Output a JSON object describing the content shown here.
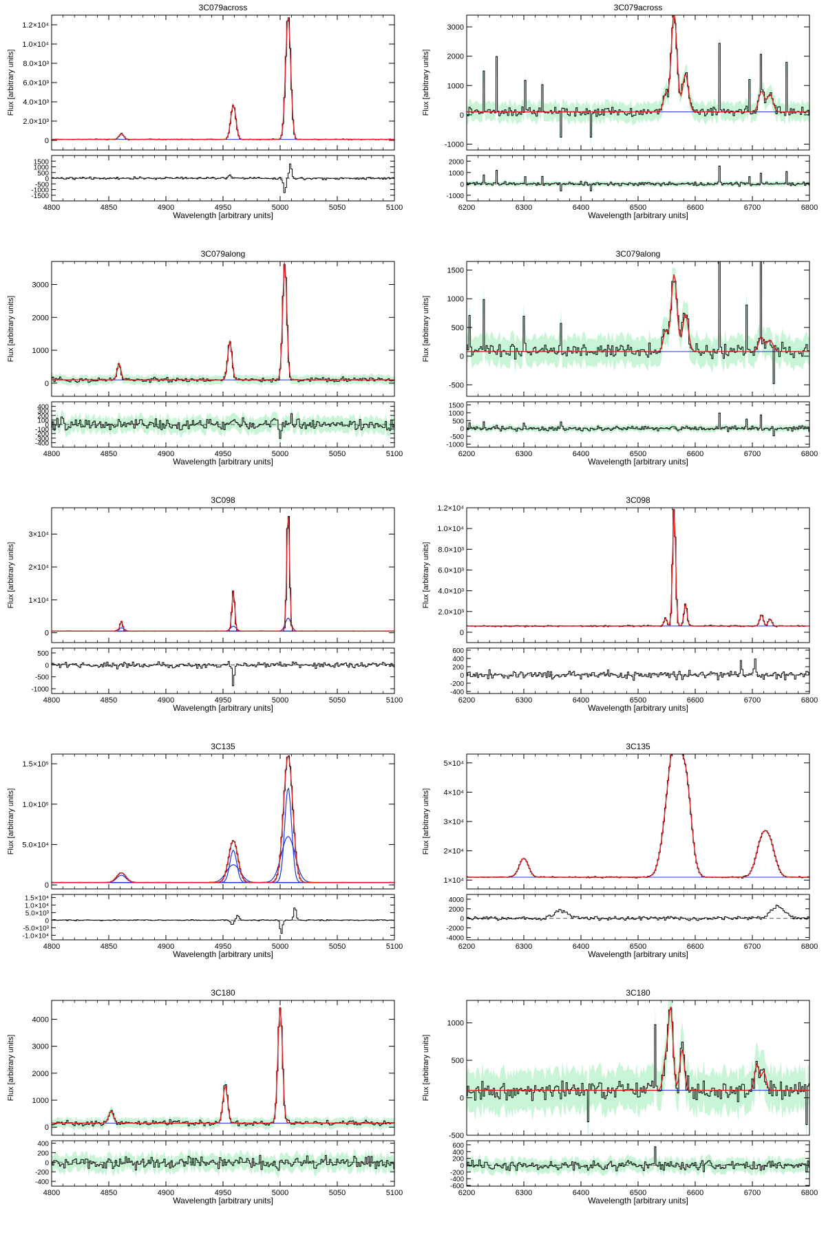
{
  "figure": {
    "xlabel": "Wavelength [arbitrary units]",
    "ylabel": "Flux [arbitrary units]"
  },
  "colors": {
    "data": "#000000",
    "error_band": "#b6f2c8",
    "fit": "#e02020",
    "components": "#2030e0",
    "frame": "#000000"
  },
  "chart_data": [
    {
      "type": "line",
      "row": 0,
      "col": 0,
      "title": "3C079across",
      "xlim": [
        4800,
        5100
      ],
      "ylim": [
        -1000,
        13000
      ],
      "res_ylim": [
        -2000,
        2000
      ],
      "xticks": [
        4800,
        4850,
        4900,
        4950,
        5000,
        5050,
        5100
      ],
      "yticks": [
        0,
        2000,
        4000,
        6000,
        8000,
        10000,
        12000
      ],
      "ytick_labels": [
        "0",
        "2.0×10³",
        "4.0×10³",
        "6.0×10³",
        "8.0×10³",
        "1.0×10⁴",
        "1.2×10⁴"
      ],
      "res_yticks": [
        -1500,
        -1000,
        -500,
        0,
        500,
        1000,
        1500
      ],
      "res_ytick_labels": [
        "-1500",
        "-1000",
        "-500",
        "0",
        "500",
        "1000",
        "1500"
      ],
      "continuum": 100,
      "noise": 40,
      "res_noise": 90,
      "error_band": false,
      "lines": [
        {
          "x": 4861,
          "amp": 600,
          "sigma": 2
        },
        {
          "x": 4959,
          "amp": 3600,
          "sigma": 2.2
        },
        {
          "x": 5007,
          "amp": 13000,
          "sigma": 2.2
        }
      ],
      "components": [],
      "residual_features": [
        {
          "x": 5009,
          "amp": 1300,
          "sigma": 1
        },
        {
          "x": 5004,
          "amp": -1300,
          "sigma": 1
        },
        {
          "x": 4956,
          "amp": 300,
          "sigma": 1.2
        }
      ]
    },
    {
      "type": "line",
      "row": 0,
      "col": 1,
      "title": "3C079across",
      "xlim": [
        6200,
        6800
      ],
      "ylim": [
        -1200,
        3400
      ],
      "res_ylim": [
        -1500,
        2500
      ],
      "xticks": [
        6200,
        6300,
        6400,
        6500,
        6600,
        6700,
        6800
      ],
      "yticks": [
        -1000,
        0,
        1000,
        2000,
        3000
      ],
      "ytick_labels": [
        "-1000",
        "0",
        "1000",
        "2000",
        "3000"
      ],
      "res_yticks": [
        -1000,
        0,
        1000,
        2000
      ],
      "res_ytick_labels": [
        "-1000",
        "0",
        "1000",
        "2000"
      ],
      "continuum": 100,
      "noise": 140,
      "res_noise": 140,
      "error_band": true,
      "lines": [
        {
          "x": 6548,
          "amp": 600,
          "sigma": 2
        },
        {
          "x": 6563,
          "amp": 3400,
          "sigma": 2.5
        },
        {
          "x": 6583,
          "amp": 1300,
          "sigma": 2.5
        },
        {
          "x": 6716,
          "amp": 700,
          "sigma": 2.5
        },
        {
          "x": 6731,
          "amp": 600,
          "sigma": 2.5
        }
      ],
      "components": [],
      "spikes": [
        {
          "x": 6230,
          "amp": 1400
        },
        {
          "x": 6252,
          "amp": 1800
        },
        {
          "x": 6303,
          "amp": 1000
        },
        {
          "x": 6333,
          "amp": 900
        },
        {
          "x": 6364,
          "amp": -1000
        },
        {
          "x": 6642,
          "amp": 2500
        },
        {
          "x": 6694,
          "amp": 1100
        },
        {
          "x": 6715,
          "amp": 1300
        },
        {
          "x": 6760,
          "amp": 1700
        },
        {
          "x": 6418,
          "amp": -900
        }
      ],
      "residual_features": []
    },
    {
      "type": "line",
      "row": 1,
      "col": 0,
      "title": "3C079along",
      "xlim": [
        4800,
        5100
      ],
      "ylim": [
        -400,
        3700
      ],
      "res_ylim": [
        -500,
        500
      ],
      "xticks": [
        4800,
        4850,
        4900,
        4950,
        5000,
        5050,
        5100
      ],
      "yticks": [
        0,
        1000,
        2000,
        3000
      ],
      "ytick_labels": [
        "0",
        "1000",
        "2000",
        "3000"
      ],
      "res_yticks": [
        -400,
        -300,
        -200,
        -100,
        0,
        100,
        200,
        300,
        400
      ],
      "res_ytick_labels": [
        "-400",
        "-300",
        "-200",
        "-100",
        "0",
        "100",
        "200",
        "300",
        "400"
      ],
      "continuum": 100,
      "noise": 60,
      "res_noise": 110,
      "error_band": true,
      "lines": [
        {
          "x": 4859,
          "amp": 500,
          "sigma": 1.6
        },
        {
          "x": 4956,
          "amp": 1200,
          "sigma": 1.8
        },
        {
          "x": 5004,
          "amp": 3600,
          "sigma": 1.8
        }
      ],
      "components": [],
      "residual_features": [
        {
          "x": 5000,
          "amp": -350,
          "sigma": 0.6
        },
        {
          "x": 5010,
          "amp": 300,
          "sigma": 0.6
        }
      ]
    },
    {
      "type": "line",
      "row": 1,
      "col": 1,
      "title": "3C079along",
      "xlim": [
        6200,
        6800
      ],
      "ylim": [
        -700,
        1650
      ],
      "res_ylim": [
        -1200,
        1700
      ],
      "xticks": [
        6200,
        6300,
        6400,
        6500,
        6600,
        6700,
        6800
      ],
      "yticks": [
        -500,
        0,
        500,
        1000,
        1500
      ],
      "ytick_labels": [
        "-500",
        "0",
        "500",
        "1000",
        "1500"
      ],
      "res_yticks": [
        -1000,
        -500,
        0,
        500,
        1000,
        1500
      ],
      "res_ytick_labels": [
        "-1000",
        "-500",
        "0",
        "500",
        "1000",
        "1500"
      ],
      "continuum": 80,
      "noise": 110,
      "res_noise": 130,
      "error_band": true,
      "lines": [
        {
          "x": 6548,
          "amp": 350,
          "sigma": 2
        },
        {
          "x": 6563,
          "amp": 1350,
          "sigma": 2.5
        },
        {
          "x": 6583,
          "amp": 650,
          "sigma": 2.5
        },
        {
          "x": 6716,
          "amp": 250,
          "sigma": 2.5
        },
        {
          "x": 6731,
          "amp": 200,
          "sigma": 2.5
        }
      ],
      "components": [],
      "spikes": [
        {
          "x": 6205,
          "amp": 700
        },
        {
          "x": 6230,
          "amp": 800
        },
        {
          "x": 6300,
          "amp": 600
        },
        {
          "x": 6364,
          "amp": 500
        },
        {
          "x": 6642,
          "amp": 1600
        },
        {
          "x": 6715,
          "amp": 1500
        },
        {
          "x": 6738,
          "amp": -700
        },
        {
          "x": 6690,
          "amp": 800
        }
      ],
      "residual_features": []
    },
    {
      "type": "line",
      "row": 2,
      "col": 0,
      "title": "3C098",
      "xlim": [
        4800,
        5100
      ],
      "ylim": [
        -3000,
        38000
      ],
      "res_ylim": [
        -1200,
        700
      ],
      "xticks": [
        4800,
        4850,
        4900,
        4950,
        5000,
        5050,
        5100
      ],
      "yticks": [
        0,
        10000,
        20000,
        30000
      ],
      "ytick_labels": [
        "0",
        "1×10⁴",
        "2×10⁴",
        "3×10⁴"
      ],
      "res_yticks": [
        -1000,
        -500,
        0,
        500
      ],
      "res_ytick_labels": [
        "-1000",
        "-500",
        "0",
        "500"
      ],
      "continuum": 500,
      "noise": 60,
      "res_noise": 110,
      "error_band": false,
      "lines": [
        {
          "x": 4861,
          "amp": 3000,
          "sigma": 1.2
        },
        {
          "x": 4959,
          "amp": 12500,
          "sigma": 1.2
        },
        {
          "x": 5007,
          "amp": 38000,
          "sigma": 1.2
        }
      ],
      "components": [
        {
          "x": 4861,
          "amp": 1000,
          "sigma": 2.5
        },
        {
          "x": 4959,
          "amp": 1500,
          "sigma": 2.5
        },
        {
          "x": 5007,
          "amp": 4000,
          "sigma": 2.5
        }
      ],
      "residual_features": [
        {
          "x": 4959,
          "amp": -1000,
          "sigma": 0.8
        }
      ]
    },
    {
      "type": "line",
      "row": 2,
      "col": 1,
      "title": "3C098",
      "xlim": [
        6200,
        6800
      ],
      "ylim": [
        -1000,
        12000
      ],
      "res_ylim": [
        -450,
        650
      ],
      "xticks": [
        6200,
        6300,
        6400,
        6500,
        6600,
        6700,
        6800
      ],
      "yticks": [
        0,
        2000,
        4000,
        6000,
        8000,
        10000,
        12000
      ],
      "ytick_labels": [
        "0",
        "2.0×10³",
        "4.0×10³",
        "6.0×10³",
        "8.0×10³",
        "1.0×10⁴",
        "1.2×10⁴"
      ],
      "res_yticks": [
        -400,
        -200,
        0,
        200,
        400,
        600
      ],
      "res_ytick_labels": [
        "-400",
        "-200",
        "0",
        "200",
        "400",
        "600"
      ],
      "continuum": 600,
      "noise": 60,
      "res_noise": 90,
      "error_band": false,
      "lines": [
        {
          "x": 6548,
          "amp": 800,
          "sigma": 1.2
        },
        {
          "x": 6563,
          "amp": 11500,
          "sigma": 1.3
        },
        {
          "x": 6583,
          "amp": 2200,
          "sigma": 1.3
        },
        {
          "x": 6716,
          "amp": 1100,
          "sigma": 1.5
        },
        {
          "x": 6731,
          "amp": 700,
          "sigma": 1.5
        }
      ],
      "components": [],
      "residual_features": [
        {
          "x": 6680,
          "amp": 350,
          "sigma": 0.8
        },
        {
          "x": 6705,
          "amp": 450,
          "sigma": 0.8
        }
      ]
    },
    {
      "type": "line",
      "row": 3,
      "col": 0,
      "title": "3C135",
      "xlim": [
        4800,
        5100
      ],
      "ylim": [
        -5000,
        162000
      ],
      "res_ylim": [
        -13000,
        17000
      ],
      "xticks": [
        4800,
        4850,
        4900,
        4950,
        5000,
        5050,
        5100
      ],
      "yticks": [
        0,
        50000,
        100000,
        150000
      ],
      "ytick_labels": [
        "0",
        "5.0×10⁴",
        "1.0×10⁵",
        "1.5×10⁵"
      ],
      "res_yticks": [
        -10000,
        -5000,
        0,
        5000,
        10000,
        15000
      ],
      "res_ytick_labels": [
        "-1.0×10⁴",
        "-5.0×10³",
        "0",
        "5.0×10³",
        "1.0×10⁴",
        "1.5×10⁴"
      ],
      "continuum": 3000,
      "noise": 200,
      "res_noise": 300,
      "error_band": false,
      "lines": [
        {
          "x": 4861,
          "amp": 12000,
          "sigma": 4
        },
        {
          "x": 4959,
          "amp": 52000,
          "sigma": 4
        },
        {
          "x": 5007,
          "amp": 158000,
          "sigma": 4
        }
      ],
      "components": [
        {
          "x": 4861,
          "amp": 9000,
          "sigma": 4
        },
        {
          "x": 4959,
          "amp": 40000,
          "sigma": 3
        },
        {
          "x": 5007,
          "amp": 118000,
          "sigma": 3
        },
        {
          "x": 4959,
          "amp": 22000,
          "sigma": 6
        },
        {
          "x": 5007,
          "amp": 57000,
          "sigma": 6
        }
      ],
      "residual_features": [
        {
          "x": 5001,
          "amp": -9000,
          "sigma": 1
        },
        {
          "x": 5013,
          "amp": 9000,
          "sigma": 1
        },
        {
          "x": 4958,
          "amp": -3000,
          "sigma": 1.2
        },
        {
          "x": 4963,
          "amp": 3000,
          "sigma": 1.2
        }
      ]
    },
    {
      "type": "line",
      "row": 3,
      "col": 1,
      "title": "3C135",
      "xlim": [
        6200,
        6800
      ],
      "ylim": [
        7000,
        53000
      ],
      "res_ylim": [
        -4500,
        5000
      ],
      "xticks": [
        6200,
        6300,
        6400,
        6500,
        6600,
        6700,
        6800
      ],
      "yticks": [
        10000,
        20000,
        30000,
        40000,
        50000
      ],
      "ytick_labels": [
        "1×10⁴",
        "2×10⁴",
        "3×10⁴",
        "4×10⁴",
        "5×10⁴"
      ],
      "res_yticks": [
        -4000,
        -2000,
        0,
        2000,
        4000
      ],
      "res_ytick_labels": [
        "-4000",
        "-2000",
        "0",
        "2000",
        "4000"
      ],
      "continuum": 11000,
      "noise": 200,
      "res_noise": 350,
      "error_band": false,
      "lines": [
        {
          "x": 6300,
          "amp": 6500,
          "sigma": 4
        },
        {
          "x": 6548,
          "amp": 12000,
          "sigma": 5
        },
        {
          "x": 6563,
          "amp": 38000,
          "sigma": 5
        },
        {
          "x": 6583,
          "amp": 33000,
          "sigma": 5
        },
        {
          "x": 6716,
          "amp": 11000,
          "sigma": 5
        },
        {
          "x": 6731,
          "amp": 10000,
          "sigma": 5
        }
      ],
      "components": [],
      "residual_features": [
        {
          "x": 6365,
          "amp": 1500,
          "sigma": 6
        },
        {
          "x": 6745,
          "amp": 2500,
          "sigma": 6
        }
      ]
    },
    {
      "type": "line",
      "row": 4,
      "col": 0,
      "title": "3C180",
      "xlim": [
        4800,
        5100
      ],
      "ylim": [
        -300,
        4700
      ],
      "res_ylim": [
        -500,
        450
      ],
      "xticks": [
        4800,
        4850,
        4900,
        4950,
        5000,
        5050,
        5100
      ],
      "yticks": [
        0,
        1000,
        2000,
        3000,
        4000
      ],
      "ytick_labels": [
        "0",
        "1000",
        "2000",
        "3000",
        "4000"
      ],
      "res_yticks": [
        -400,
        -200,
        0,
        200,
        400
      ],
      "res_ytick_labels": [
        "-400",
        "-200",
        "0",
        "200",
        "400"
      ],
      "continuum": 150,
      "noise": 80,
      "res_noise": 110,
      "error_band": true,
      "lines": [
        {
          "x": 4852,
          "amp": 450,
          "sigma": 2
        },
        {
          "x": 4952,
          "amp": 1400,
          "sigma": 2
        },
        {
          "x": 5000,
          "amp": 4300,
          "sigma": 2
        }
      ],
      "components": [],
      "residual_features": []
    },
    {
      "type": "line",
      "row": 4,
      "col": 1,
      "title": "3C180",
      "xlim": [
        6200,
        6800
      ],
      "ylim": [
        -500,
        1300
      ],
      "res_ylim": [
        -620,
        720
      ],
      "xticks": [
        6200,
        6300,
        6400,
        6500,
        6600,
        6700,
        6800
      ],
      "yticks": [
        -500,
        0,
        500,
        1000
      ],
      "ytick_labels": [
        "-500",
        "0",
        "500",
        "1000"
      ],
      "res_yticks": [
        -600,
        -400,
        -200,
        0,
        200,
        400,
        600
      ],
      "res_ytick_labels": [
        "-600",
        "-400",
        "-200",
        "0",
        "200",
        "400",
        "600"
      ],
      "continuum": 100,
      "noise": 120,
      "res_noise": 130,
      "error_band": true,
      "lines": [
        {
          "x": 6548,
          "amp": 400,
          "sigma": 2
        },
        {
          "x": 6557,
          "amp": 1100,
          "sigma": 2
        },
        {
          "x": 6577,
          "amp": 550,
          "sigma": 2
        },
        {
          "x": 6708,
          "amp": 350,
          "sigma": 2
        },
        {
          "x": 6720,
          "amp": 250,
          "sigma": 2
        }
      ],
      "components": [],
      "spikes": [
        {
          "x": 6530,
          "amp": 900
        },
        {
          "x": 6412,
          "amp": -450
        },
        {
          "x": 6795,
          "amp": -400
        }
      ],
      "residual_features": []
    }
  ]
}
